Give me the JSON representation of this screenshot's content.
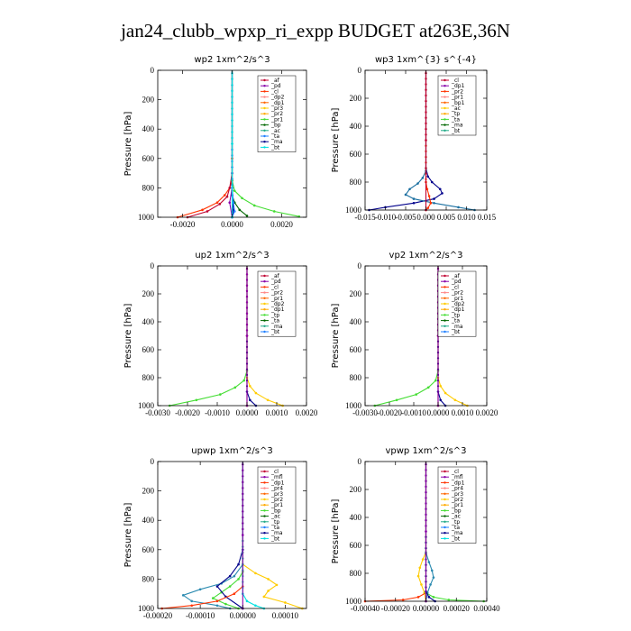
{
  "title": "jan24_clubb_wpxp_ri_expp  BUDGET at263E,36N",
  "chart_data": [
    {
      "type": "line",
      "title": "wp2   1xm^2/s^3",
      "ylabel": "Pressure [hPa]",
      "xlim": [
        -0.003,
        0.003
      ],
      "ylim": [
        1000,
        0
      ],
      "xticks": [
        -0.002,
        0.0,
        0.002
      ],
      "xtick_labels": [
        "-0.0020",
        "0.0000",
        "0.0020"
      ],
      "yticks": [
        0,
        200,
        400,
        600,
        800,
        1000
      ],
      "ytick_labels": [
        "0",
        "200",
        "400",
        "600",
        "800",
        "1000"
      ],
      "legend": [
        "_af",
        "_pd",
        "_cl",
        "_dp2",
        "_dp1",
        "_pr3",
        "_pr2",
        "_pr1",
        "_bp",
        "_ac",
        "_ta",
        "_ma",
        "_bt"
      ],
      "series": [
        {
          "color": "#ff3300",
          "x": [
            0,
            0,
            0,
            -0.0001,
            -0.0003,
            -0.0006,
            -0.0012,
            -0.0022
          ],
          "y": [
            0,
            600,
            750,
            800,
            850,
            900,
            950,
            1000
          ]
        },
        {
          "color": "#c00030",
          "x": [
            0,
            0,
            -0.0001,
            -0.0002,
            -0.0005,
            -0.001,
            -0.0018
          ],
          "y": [
            0,
            700,
            800,
            860,
            910,
            960,
            1000
          ]
        },
        {
          "color": "#44dd33",
          "x": [
            0,
            0,
            0.0001,
            0.0004,
            0.0009,
            0.0017,
            0.0027
          ],
          "y": [
            0,
            750,
            820,
            870,
            920,
            960,
            995
          ]
        },
        {
          "color": "#006600",
          "x": [
            0,
            0,
            0.0001,
            0.0003,
            0.0006
          ],
          "y": [
            0,
            850,
            900,
            950,
            990
          ]
        },
        {
          "color": "#00008b",
          "x": [
            0,
            0,
            5e-05,
            0
          ],
          "y": [
            0,
            850,
            950,
            1000
          ]
        },
        {
          "color": "#8800aa",
          "x": [
            0,
            0,
            -0.0001,
            0
          ],
          "y": [
            0,
            800,
            900,
            1000
          ]
        },
        {
          "color": "#2080ff",
          "x": [
            0,
            0,
            5e-05,
            0.0001,
            0
          ],
          "y": [
            0,
            800,
            900,
            960,
            1000
          ]
        },
        {
          "color": "#00e0e0",
          "x": [
            0,
            0,
            0
          ],
          "y": [
            0,
            500,
            1000
          ]
        }
      ]
    },
    {
      "type": "line",
      "title": "wp3   1xm^{3} s^{-4}",
      "ylabel": "Pressure [hPa]",
      "xlim": [
        -0.015,
        0.015
      ],
      "ylim": [
        1000,
        0
      ],
      "xticks": [
        -0.015,
        -0.01,
        -0.005,
        0.0,
        0.005,
        0.01,
        0.015
      ],
      "xtick_labels": [
        "-0.015",
        "-0.010",
        "-0.005",
        "0.000",
        "0.005",
        "0.010",
        "0.015"
      ],
      "yticks": [
        0,
        200,
        400,
        600,
        800,
        1000
      ],
      "ytick_labels": [
        "0",
        "200",
        "400",
        "600",
        "800",
        "1000"
      ],
      "legend": [
        "_cl",
        "_dp1",
        "_pr2",
        "_pr1",
        "_bp1",
        "_ac",
        "_tp",
        "_ta",
        "_ma",
        "_bt"
      ],
      "series": [
        {
          "color": "#00008b",
          "x": [
            0,
            0,
            0.0005,
            0.0015,
            0.0035,
            0.004,
            0.002,
            -0.003,
            -0.01,
            -0.014
          ],
          "y": [
            0,
            700,
            760,
            800,
            850,
            880,
            920,
            950,
            980,
            1000
          ]
        },
        {
          "color": "#1a6fa0",
          "x": [
            0,
            0,
            -0.0008,
            -0.002,
            -0.004,
            -0.005,
            -0.003,
            0.002,
            0.008,
            0.012
          ],
          "y": [
            0,
            720,
            770,
            810,
            850,
            890,
            920,
            950,
            980,
            1000
          ]
        },
        {
          "color": "#ff3300",
          "x": [
            0,
            0,
            0.0003,
            0.0008,
            0.0012,
            0.0005,
            0
          ],
          "y": [
            0,
            800,
            850,
            900,
            950,
            985,
            1000
          ]
        },
        {
          "color": "#c00030",
          "x": [
            0,
            0,
            0
          ],
          "y": [
            0,
            500,
            1000
          ]
        }
      ]
    },
    {
      "type": "line",
      "title": "up2   1xm^2/s^3",
      "ylabel": "Pressure [hPa]",
      "xlim": [
        -0.003,
        0.002
      ],
      "ylim": [
        1000,
        0
      ],
      "xticks": [
        -0.003,
        -0.002,
        -0.001,
        0.0,
        0.001,
        0.002
      ],
      "xtick_labels": [
        "-0.0030",
        "-0.0020",
        "-0.0010",
        "0.0000",
        "0.0010",
        "0.0020"
      ],
      "yticks": [
        0,
        200,
        400,
        600,
        800,
        1000
      ],
      "ytick_labels": [
        "0",
        "200",
        "400",
        "600",
        "800",
        "1000"
      ],
      "legend": [
        "_af",
        "_pd",
        "_cl",
        "_pr2",
        "_pr1",
        "_dp2",
        "_dp1",
        "_tp",
        "_ta",
        "_ma",
        "_bt"
      ],
      "series": [
        {
          "color": "#44dd33",
          "x": [
            0,
            0,
            -0.0001,
            -0.0004,
            -0.0009,
            -0.0017,
            -0.0026
          ],
          "y": [
            0,
            750,
            820,
            870,
            920,
            960,
            1000
          ]
        },
        {
          "color": "#ffcc00",
          "x": [
            0,
            0,
            0.0001,
            0.0003,
            0.0007,
            0.0012
          ],
          "y": [
            0,
            800,
            860,
            910,
            960,
            1000
          ]
        },
        {
          "color": "#00008b",
          "x": [
            0,
            0,
            0.0001,
            0.0003
          ],
          "y": [
            0,
            900,
            960,
            1000
          ]
        },
        {
          "color": "#ff3300",
          "x": [
            0,
            0,
            0
          ],
          "y": [
            0,
            500,
            1000
          ]
        },
        {
          "color": "#8800aa",
          "x": [
            0,
            0,
            0
          ],
          "y": [
            0,
            500,
            1000
          ]
        }
      ]
    },
    {
      "type": "line",
      "title": "vp2   1xm^2/s^3",
      "ylabel": "Pressure [hPa]",
      "xlim": [
        -0.003,
        0.002
      ],
      "ylim": [
        1000,
        0
      ],
      "xticks": [
        -0.003,
        -0.002,
        -0.001,
        0.0,
        0.001,
        0.002
      ],
      "xtick_labels": [
        "-0.0030",
        "-0.0020",
        "-0.0010",
        "0.0000",
        "0.0010",
        "0.0020"
      ],
      "yticks": [
        0,
        200,
        400,
        600,
        800,
        1000
      ],
      "ytick_labels": [
        "0",
        "200",
        "400",
        "600",
        "800",
        "1000"
      ],
      "legend": [
        "_af",
        "_pd",
        "_cl",
        "_pr2",
        "_pr1",
        "_dp2",
        "_dp1",
        "_tp",
        "_ta",
        "_ma",
        "_bt"
      ],
      "series": [
        {
          "color": "#44dd33",
          "x": [
            0,
            0,
            -0.0001,
            -0.0004,
            -0.0009,
            -0.0017,
            -0.0026
          ],
          "y": [
            0,
            750,
            820,
            870,
            920,
            960,
            1000
          ]
        },
        {
          "color": "#ffcc00",
          "x": [
            0,
            0,
            0.0001,
            0.0003,
            0.0007,
            0.0012
          ],
          "y": [
            0,
            800,
            860,
            910,
            960,
            1000
          ]
        },
        {
          "color": "#00008b",
          "x": [
            0,
            0,
            0.0001,
            0.0003
          ],
          "y": [
            0,
            900,
            960,
            1000
          ]
        },
        {
          "color": "#ff3300",
          "x": [
            0,
            0,
            0
          ],
          "y": [
            0,
            500,
            1000
          ]
        },
        {
          "color": "#8800aa",
          "x": [
            0,
            0,
            0
          ],
          "y": [
            0,
            500,
            1000
          ]
        }
      ]
    },
    {
      "type": "line",
      "title": "upwp   1xm^2/s^3",
      "ylabel": "Pressure [hPa]",
      "xlim": [
        -0.0002,
        0.00015
      ],
      "ylim": [
        1000,
        0
      ],
      "xticks": [
        -0.0002,
        -0.0001,
        0.0,
        0.0001
      ],
      "xtick_labels": [
        "-0.00020",
        "-0.00010",
        "0.00000",
        "0.00010"
      ],
      "yticks": [
        0,
        200,
        400,
        600,
        800,
        1000
      ],
      "ytick_labels": [
        "0",
        "200",
        "400",
        "600",
        "800",
        "1000"
      ],
      "legend": [
        "_cl",
        "_mfl",
        "_dp1",
        "_pr4",
        "_pr3",
        "_pr2",
        "_pr1",
        "_bp",
        "_ac",
        "_tp",
        "_ta",
        "_ma",
        "_bt"
      ],
      "series": [
        {
          "color": "#ffcc00",
          "x": [
            0,
            0,
            3e-05,
            6e-05,
            8e-05,
            6e-05,
            5e-05,
            0.0001,
            0.00014
          ],
          "y": [
            0,
            700,
            760,
            800,
            840,
            880,
            920,
            960,
            1000
          ]
        },
        {
          "color": "#2a8ab0",
          "x": [
            0,
            0,
            -2e-05,
            -5e-05,
            -0.0001,
            -0.00014,
            -0.00012,
            -6e-05,
            -3e-05
          ],
          "y": [
            0,
            700,
            780,
            830,
            870,
            910,
            950,
            980,
            1000
          ]
        },
        {
          "color": "#44dd33",
          "x": [
            0,
            0,
            -1e-05,
            -3e-05,
            -5e-05,
            -7e-05,
            -4e-05,
            -1e-05
          ],
          "y": [
            0,
            750,
            800,
            850,
            890,
            930,
            970,
            1000
          ]
        },
        {
          "color": "#00008b",
          "x": [
            0,
            0,
            -1e-05,
            -3e-05,
            -6e-05,
            -4e-05,
            0
          ],
          "y": [
            0,
            600,
            700,
            780,
            850,
            920,
            1000
          ]
        },
        {
          "color": "#ff3300",
          "x": [
            0,
            0,
            -2e-05,
            -6e-05,
            -0.00012,
            -0.00019
          ],
          "y": [
            0,
            850,
            900,
            950,
            980,
            1000
          ]
        },
        {
          "color": "#00e0e0",
          "x": [
            0,
            0,
            1e-05,
            3e-05,
            5e-05
          ],
          "y": [
            0,
            900,
            950,
            980,
            1000
          ]
        },
        {
          "color": "#8800aa",
          "x": [
            0,
            0,
            0
          ],
          "y": [
            0,
            500,
            1000
          ]
        }
      ]
    },
    {
      "type": "line",
      "title": "vpwp   1xm^2/s^3",
      "ylabel": "Pressure [hPa]",
      "xlim": [
        -0.0004,
        0.0004
      ],
      "ylim": [
        1000,
        0
      ],
      "xticks": [
        -0.0004,
        -0.0002,
        0.0,
        0.0002,
        0.0004
      ],
      "xtick_labels": [
        "-0.00040",
        "-0.00020",
        "0.00000",
        "0.00020",
        "0.00040"
      ],
      "yticks": [
        0,
        200,
        400,
        600,
        800,
        1000
      ],
      "ytick_labels": [
        "0",
        "200",
        "400",
        "600",
        "800",
        "1000"
      ],
      "legend": [
        "_cl",
        "_mfl",
        "_dp1",
        "_pr4",
        "_pr3",
        "_pr2",
        "_pr1",
        "_bp",
        "_ac",
        "_tp",
        "_ta",
        "_ma",
        "_bt"
      ],
      "series": [
        {
          "color": "#ffcc00",
          "x": [
            0,
            0,
            -2e-05,
            -4e-05,
            -5e-05,
            -3e-05,
            -1e-05,
            0
          ],
          "y": [
            0,
            650,
            700,
            760,
            820,
            880,
            940,
            1000
          ]
        },
        {
          "color": "#2a8ab0",
          "x": [
            0,
            0,
            2e-05,
            4e-05,
            5e-05,
            3e-05,
            1e-05,
            0
          ],
          "y": [
            0,
            650,
            720,
            780,
            830,
            880,
            940,
            1000
          ]
        },
        {
          "color": "#ff3300",
          "x": [
            0,
            0,
            -5e-05,
            -0.00015,
            -0.0004
          ],
          "y": [
            0,
            940,
            970,
            990,
            1000
          ]
        },
        {
          "color": "#44dd33",
          "x": [
            0,
            0,
            5e-05,
            0.00015,
            0.00038
          ],
          "y": [
            0,
            940,
            970,
            990,
            1000
          ]
        },
        {
          "color": "#00008b",
          "x": [
            0,
            0,
            2e-05,
            6e-05
          ],
          "y": [
            0,
            930,
            970,
            1000
          ]
        },
        {
          "color": "#8800aa",
          "x": [
            0,
            0,
            0
          ],
          "y": [
            0,
            500,
            1000
          ]
        }
      ]
    }
  ]
}
